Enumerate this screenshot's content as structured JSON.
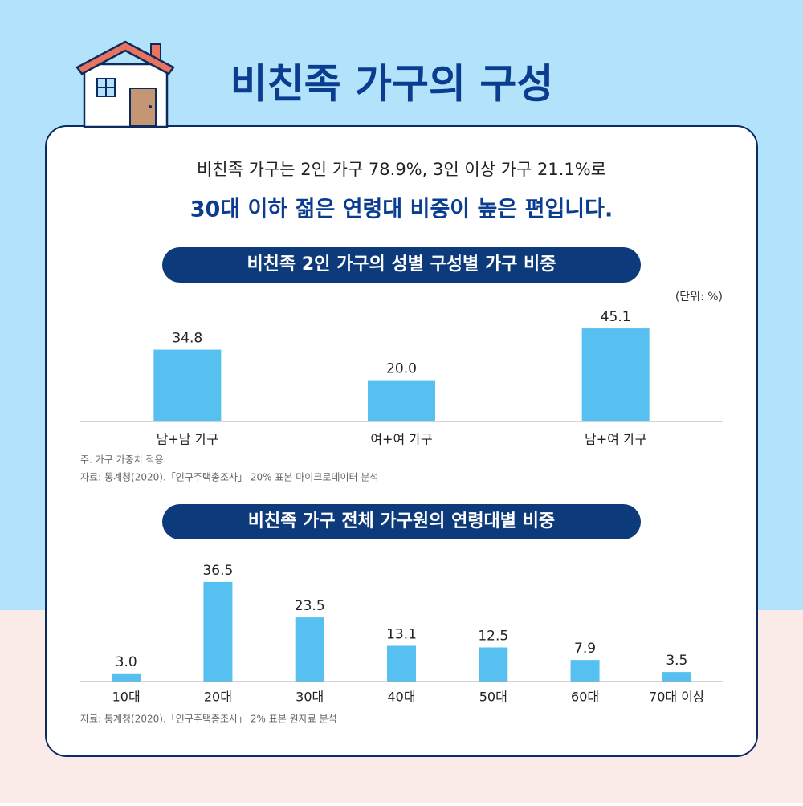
{
  "title": "비친족 가구의 구성",
  "summary": [
    "비친족 가구는 2인 가구 78.9%, 3인 이상 가구 21.1%로",
    "30대 이하 젊은 연령대 비중이 높은 편입니다."
  ],
  "chart_data": [
    {
      "type": "bar",
      "title": "비친족 2인 가구의 성별 구성별 가구 비중",
      "unit": "(단위: %)",
      "categories": [
        "남+남 가구",
        "여+여 가구",
        "남+여 가구"
      ],
      "values": [
        34.8,
        20.0,
        45.1
      ],
      "value_labels": [
        "34.8",
        "20.0",
        "45.1"
      ],
      "color": "#56c1f0",
      "notes": [
        "주. 가구 가중치 적용",
        "자료: 통계청(2020).「인구주택총조사」 20% 표본 마이크로데이터 분석"
      ]
    },
    {
      "type": "bar",
      "title": "비친족 가구 전체 가구원의 연령대별 비중",
      "categories": [
        "10대",
        "20대",
        "30대",
        "40대",
        "50대",
        "60대",
        "70대 이상"
      ],
      "values": [
        3.0,
        36.5,
        23.5,
        13.1,
        12.5,
        7.9,
        3.5
      ],
      "value_labels": [
        "3.0",
        "36.5",
        "23.5",
        "13.1",
        "12.5",
        "7.9",
        "3.5"
      ],
      "color": "#56c1f0",
      "notes": [
        "자료: 통계청(2020).「인구주택총조사」 2% 표본 원자료 분석"
      ]
    }
  ]
}
